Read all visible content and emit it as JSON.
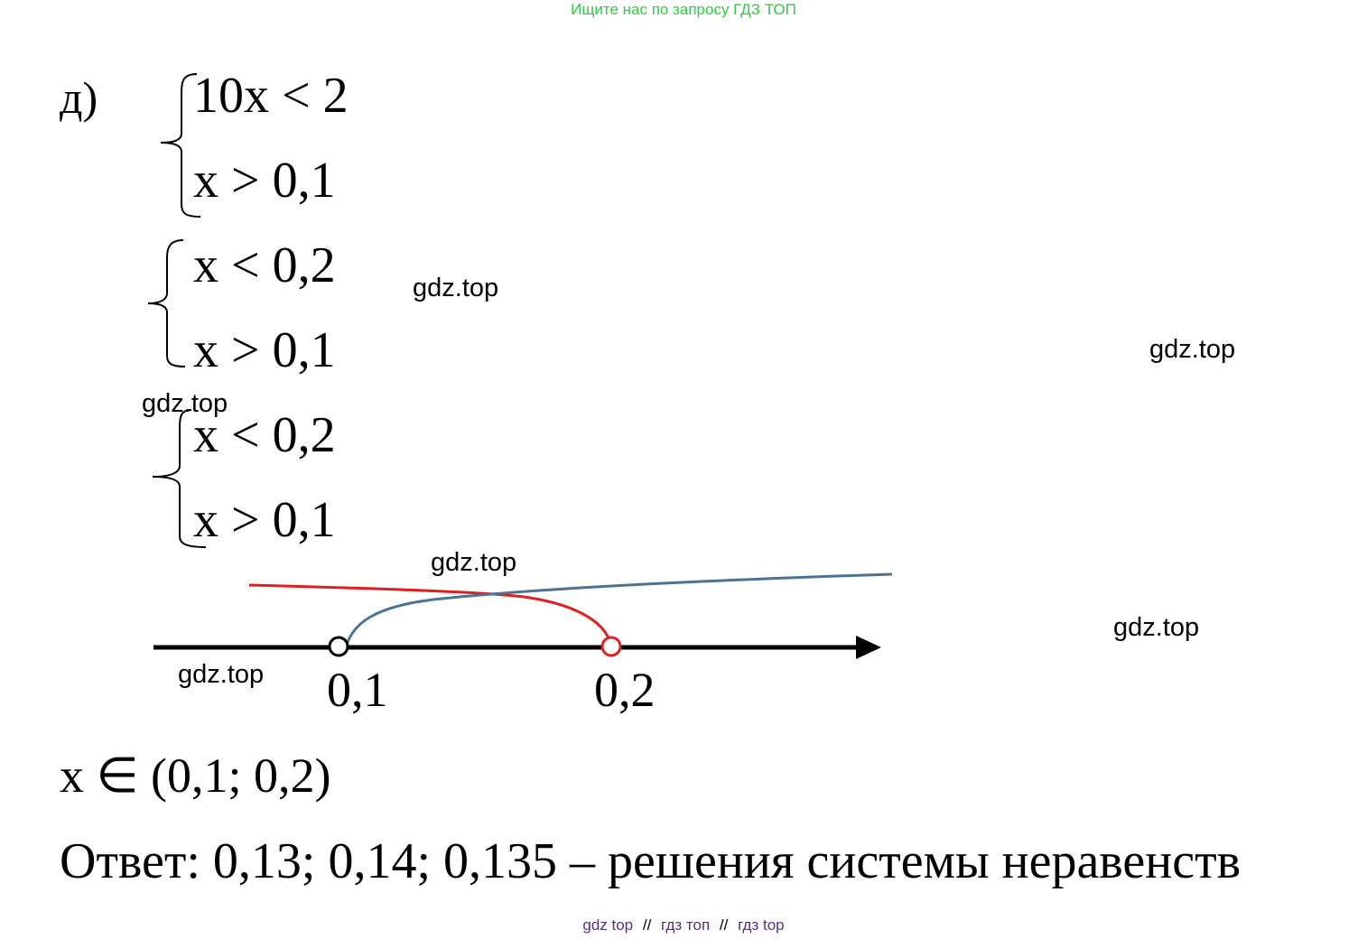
{
  "banner": {
    "text": "Ищите нас по запросу ГДЗ ТОП",
    "color": "#2ecc40"
  },
  "problem": {
    "label": "д)",
    "systems": [
      {
        "first": "10x < 2",
        "second": "x > 0,1"
      },
      {
        "first": "x < 0,2",
        "second": "x > 0,1"
      },
      {
        "first": "x < 0,2",
        "second": "x > 0,1"
      }
    ]
  },
  "number_line": {
    "points": [
      {
        "value": 0.1,
        "label": "0,1",
        "style": "open",
        "color": "#000000"
      },
      {
        "value": 0.2,
        "label": "0,2",
        "style": "open",
        "color": "#e02020"
      }
    ],
    "arcs": {
      "greater_than_0_1": {
        "color": "#4a7396"
      },
      "less_than_0_2": {
        "color": "#e02020"
      }
    }
  },
  "answer": {
    "set": "x ∈ (0,1; 0,2)",
    "text": "Ответ: 0,13; 0,14; 0,135 – решения системы неравенств"
  },
  "watermarks": [
    "gdz.top",
    "gdz.top",
    "gdz.top",
    "gdz.top",
    "gdz.top",
    "gdz.top"
  ],
  "footer": {
    "items": [
      "gdz top",
      "гдз топ",
      "гдз top"
    ],
    "separator": "//",
    "color": "#5b2a8c"
  }
}
